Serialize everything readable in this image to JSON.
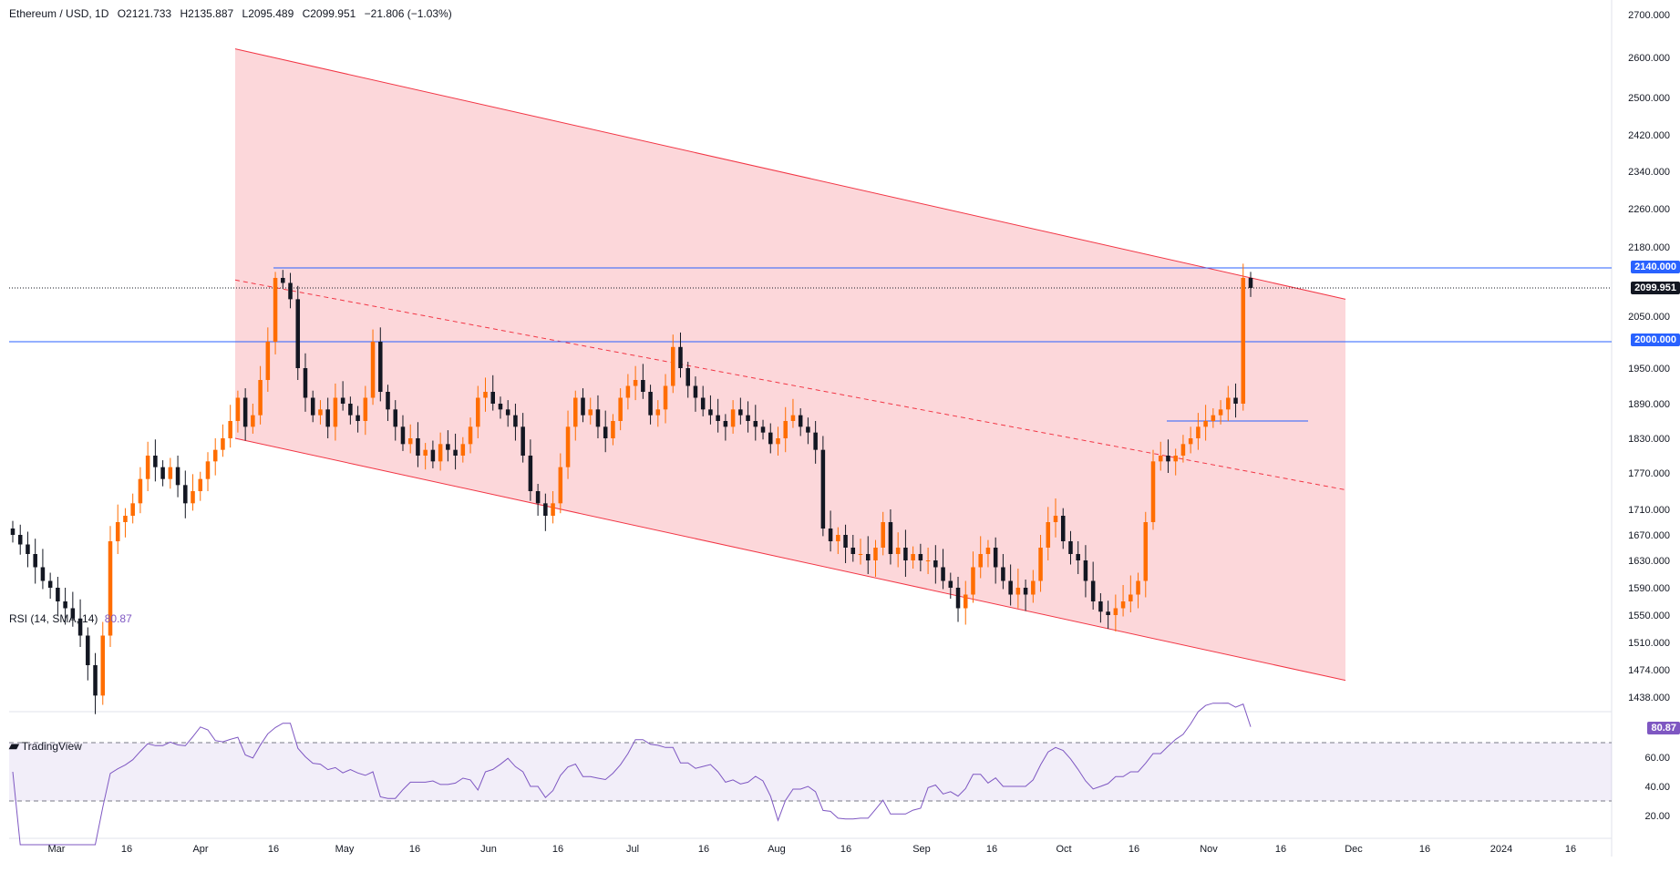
{
  "header": {
    "symbol": "Ethereum / USD, 1D",
    "open": "O2121.733",
    "high": "H2135.887",
    "low": "L2095.489",
    "close": "C2099.951",
    "change": "−21.806 (−1.03%)"
  },
  "rsi_header": {
    "label": "RSI (14, SMA, 14)",
    "value": "80.87"
  },
  "branding": {
    "name": "TradingView"
  },
  "price_tags": {
    "level_2140": "2140.000",
    "last": "2099.951",
    "level_2000": "2000.000",
    "rsi": "80.87"
  },
  "colors": {
    "up": "#ff6d00",
    "down": "#131722",
    "channel": "#f23645",
    "level": "#2962ff",
    "rsi": "#7e57c2"
  },
  "chart_data": {
    "type": "candlestick",
    "title": "Ethereum / USD, 1D",
    "y_ticks": [
      "2700.000",
      "2600.000",
      "2500.000",
      "2420.000",
      "2340.000",
      "2260.000",
      "2180.000",
      "2050.000",
      "1950.000",
      "1890.000",
      "1830.000",
      "1770.000",
      "1710.000",
      "1670.000",
      "1630.000",
      "1590.000",
      "1550.000",
      "1510.000",
      "1474.000",
      "1438.000"
    ],
    "x_ticks": [
      "Mar",
      "16",
      "Apr",
      "16",
      "May",
      "16",
      "Jun",
      "16",
      "Jul",
      "16",
      "Aug",
      "16",
      "Sep",
      "16",
      "Oct",
      "16",
      "Nov",
      "16",
      "Dec",
      "16",
      "2024",
      "16"
    ],
    "close_series": [
      1670,
      1655,
      1640,
      1620,
      1600,
      1590,
      1570,
      1560,
      1545,
      1520,
      1480,
      1440,
      1520,
      1660,
      1690,
      1700,
      1720,
      1760,
      1800,
      1780,
      1760,
      1780,
      1750,
      1720,
      1740,
      1760,
      1790,
      1810,
      1830,
      1860,
      1900,
      1850,
      1870,
      1930,
      2000,
      2120,
      2110,
      2080,
      1950,
      1900,
      1870,
      1880,
      1850,
      1900,
      1890,
      1870,
      1860,
      1900,
      2000,
      1910,
      1880,
      1850,
      1820,
      1830,
      1800,
      1810,
      1790,
      1820,
      1810,
      1800,
      1820,
      1850,
      1900,
      1910,
      1890,
      1880,
      1870,
      1850,
      1800,
      1740,
      1720,
      1700,
      1720,
      1780,
      1850,
      1900,
      1870,
      1880,
      1850,
      1830,
      1860,
      1900,
      1920,
      1930,
      1910,
      1870,
      1880,
      1920,
      1990,
      1950,
      1920,
      1900,
      1880,
      1870,
      1860,
      1850,
      1880,
      1870,
      1860,
      1850,
      1840,
      1820,
      1830,
      1860,
      1870,
      1850,
      1840,
      1810,
      1680,
      1660,
      1670,
      1650,
      1640,
      1640,
      1630,
      1650,
      1690,
      1640,
      1650,
      1630,
      1640,
      1630,
      1630,
      1620,
      1600,
      1590,
      1560,
      1580,
      1620,
      1640,
      1650,
      1620,
      1600,
      1580,
      1590,
      1580,
      1600,
      1650,
      1690,
      1700,
      1660,
      1640,
      1630,
      1600,
      1570,
      1555,
      1550,
      1560,
      1570,
      1580,
      1600,
      1690,
      1790,
      1800,
      1790,
      1800,
      1820,
      1830,
      1850,
      1860,
      1870,
      1880,
      1900,
      1890,
      2120,
      2100
    ],
    "levels": {
      "resistance_1": 2140,
      "resistance_2": 2000,
      "box_line": 1860
    },
    "channel": {
      "start": "Apr",
      "end": "Dec",
      "upper_start": 2620,
      "upper_end": 2080,
      "lower_start": 1830,
      "lower_end": 1460
    },
    "rsi": {
      "value": 80.87,
      "upper": 70,
      "lower": 30,
      "ticks": [
        "60.00",
        "40.00",
        "20.00"
      ]
    }
  }
}
